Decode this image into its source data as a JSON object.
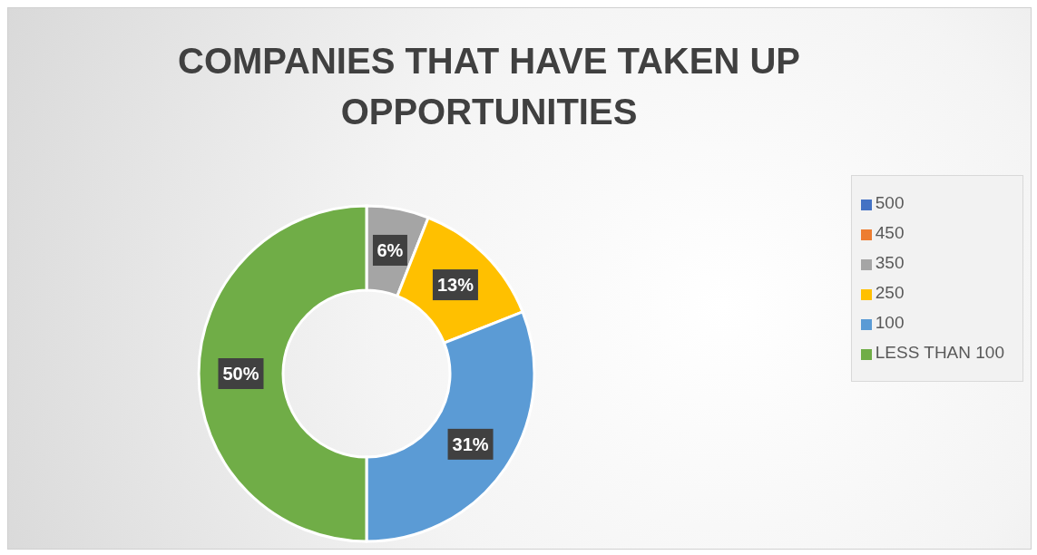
{
  "chart_data": {
    "type": "donut",
    "title": "COMPANIES THAT HAVE TAKEN UP OPPORTUNITIES",
    "categories": [
      "500",
      "450",
      "350",
      "250",
      "100",
      "LESS THAN 100"
    ],
    "values": [
      0,
      0,
      6,
      13,
      31,
      50
    ],
    "colors": [
      "#4472c4",
      "#ed7d31",
      "#a5a5a5",
      "#ffc000",
      "#5b9bd5",
      "#70ad47"
    ],
    "value_labels": [
      null,
      null,
      "6%",
      "13%",
      "31%",
      "50%"
    ],
    "legend": "right"
  }
}
